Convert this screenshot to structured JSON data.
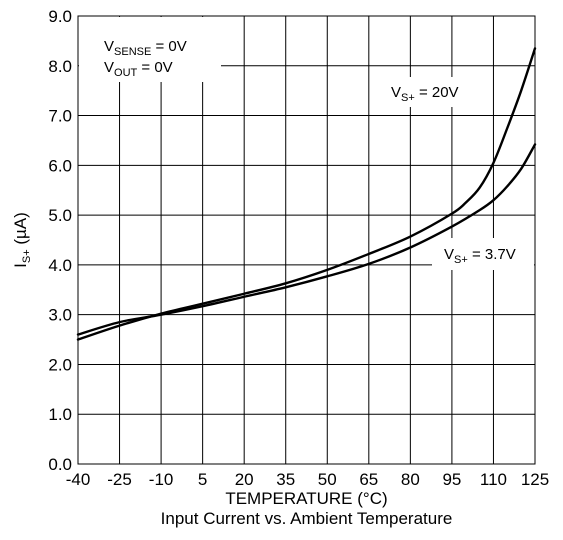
{
  "chart_data": {
    "type": "line",
    "title": "Input Current vs. Ambient Temperature",
    "xlabel": "TEMPERATURE (°C)",
    "ylabel": {
      "main": "I",
      "sub": "S+",
      "unit": " (µA)"
    },
    "xlim": [
      -40,
      125
    ],
    "ylim": [
      0,
      9
    ],
    "x_ticks": [
      -40,
      -25,
      -10,
      5,
      20,
      35,
      50,
      65,
      80,
      95,
      110,
      125
    ],
    "y_ticks": [
      0,
      1,
      2,
      3,
      4,
      5,
      6,
      7,
      8,
      9
    ],
    "y_tick_labels": [
      "0.0",
      "1.0",
      "2.0",
      "3.0",
      "4.0",
      "5.0",
      "6.0",
      "7.0",
      "8.0",
      "9.0"
    ],
    "grid": true,
    "line_color": "#000000",
    "annotations": {
      "conditions": [
        {
          "main": "V",
          "sub": "SENSE",
          "rest": " = 0V"
        },
        {
          "main": "V",
          "sub": "OUT",
          "rest": " = 0V"
        }
      ],
      "series_label_20v": {
        "main": "V",
        "sub": "S+",
        "rest": " = 20V"
      },
      "series_label_3v7": {
        "main": "V",
        "sub": "S+",
        "rest": " = 3.7V"
      }
    },
    "series": [
      {
        "x": [
          -40,
          -25,
          -10,
          5,
          20,
          35,
          50,
          65,
          80,
          95,
          100,
          105,
          110,
          115,
          120,
          125
        ],
        "y": [
          2.5,
          2.78,
          3.02,
          3.22,
          3.42,
          3.63,
          3.9,
          4.22,
          4.57,
          5.03,
          5.25,
          5.55,
          6.05,
          6.75,
          7.5,
          8.35
        ]
      },
      {
        "x": [
          -40,
          -25,
          -10,
          5,
          20,
          35,
          50,
          65,
          80,
          95,
          105,
          110,
          115,
          120,
          125
        ],
        "y": [
          2.6,
          2.85,
          3.0,
          3.17,
          3.36,
          3.55,
          3.77,
          4.02,
          4.35,
          4.77,
          5.1,
          5.3,
          5.58,
          5.93,
          6.42
        ]
      }
    ]
  }
}
